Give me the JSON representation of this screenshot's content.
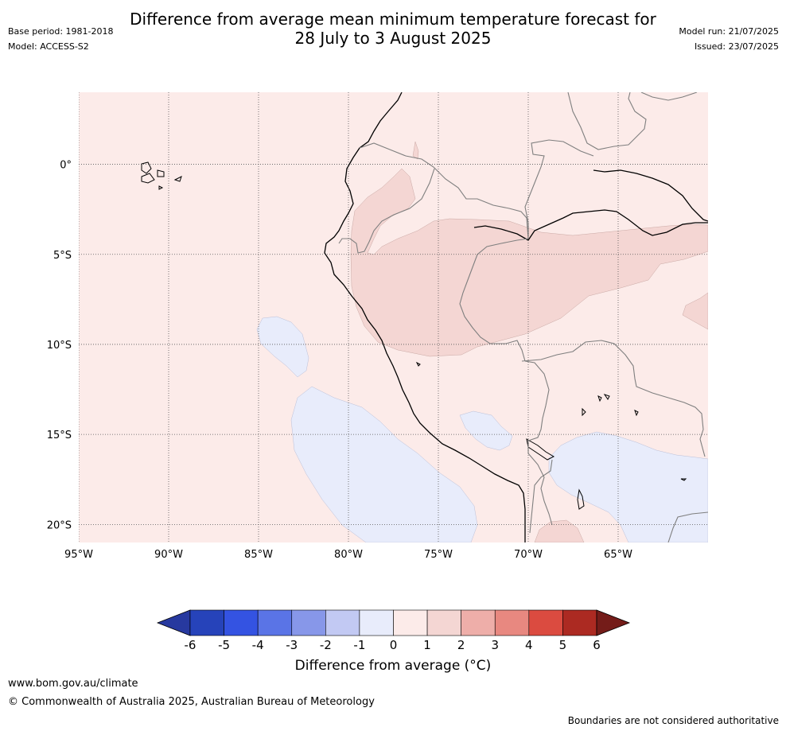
{
  "title": {
    "line1": "Difference from average mean minimum temperature forecast for",
    "line2": "28 July to 3 August 2025"
  },
  "meta_left": {
    "base_period": "Base period: 1981-2018",
    "model": "Model: ACCESS-S2"
  },
  "meta_right": {
    "model_run": "Model run: 21/07/2025",
    "issued": "Issued: 23/07/2025"
  },
  "map": {
    "lon_range": [
      -95,
      -60
    ],
    "lat_range": [
      -21,
      4
    ],
    "lon_ticks": [
      -95,
      -90,
      -85,
      -80,
      -75,
      -70,
      -65
    ],
    "lon_labels": [
      "95°W",
      "90°W",
      "85°W",
      "80°W",
      "75°W",
      "70°W",
      "65°W"
    ],
    "lat_ticks": [
      0,
      -5,
      -10,
      -15,
      -20
    ],
    "lat_labels": [
      "0°",
      "5°S",
      "10°S",
      "15°S",
      "20°S"
    ],
    "background_category": "0 to 1",
    "regions": [
      {
        "category": "1 to 2",
        "description": "coastal northern Peru and Amazon basin"
      },
      {
        "category": "1 to 2",
        "description": "far east near 9°S"
      },
      {
        "category": "1 to 2",
        "description": "northern Chile / Bolivia border near 20°S"
      },
      {
        "category": "-1 to 0",
        "description": "Pacific Ocean west of 85°W near 10°S"
      },
      {
        "category": "-1 to 0",
        "description": "Pacific Ocean off southern Peru"
      },
      {
        "category": "-1 to 0",
        "description": "southern Peru highlands near 15°S"
      },
      {
        "category": "-1 to 0",
        "description": "Bolivian lowlands"
      }
    ]
  },
  "colorbar": {
    "title": "Difference from average (°C)",
    "labels": [
      "-6",
      "-5",
      "-4",
      "-3",
      "-2",
      "-1",
      "0",
      "1",
      "2",
      "3",
      "4",
      "5",
      "6"
    ],
    "colors": [
      "#27399f",
      "#2643ba",
      "#3453e2",
      "#5a74e6",
      "#8797e9",
      "#c2c9f3",
      "#e8ecfb",
      "#fcebe9",
      "#f4d6d3",
      "#eeaea9",
      "#e88880",
      "#db4b40",
      "#ac2a22",
      "#741c19"
    ],
    "extend": "both"
  },
  "footer": {
    "website": "www.bom.gov.au/climate",
    "copyright": "© Commonwealth of Australia 2025, Australian Bureau of Meteorology",
    "disclaimer": "Boundaries are not considered authoritative"
  }
}
